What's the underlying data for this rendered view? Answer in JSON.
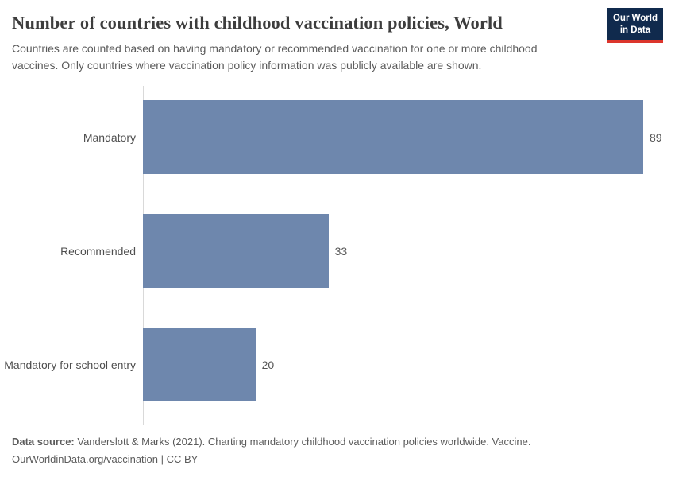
{
  "header": {
    "title": "Number of countries with childhood vaccination policies, World",
    "subtitle": "Countries are counted based on having mandatory or recommended vaccination for one or more childhood vaccines. Only countries where vaccination policy information was publicly available are shown.",
    "logo": {
      "line1": "Our World",
      "line2": "in Data"
    }
  },
  "chart_data": {
    "type": "bar",
    "orientation": "horizontal",
    "title": "Number of countries with childhood vaccination policies, World",
    "categories": [
      "Mandatory",
      "Recommended",
      "Mandatory for school entry"
    ],
    "values": [
      89,
      33,
      20
    ],
    "value_labels": [
      "89",
      "33",
      "20"
    ],
    "xlabel": "",
    "ylabel": "",
    "xlim": [
      0,
      89
    ],
    "grid": false,
    "legend": "none",
    "bar_color": "#6e87ad"
  },
  "footer": {
    "data_source_label": "Data source:",
    "data_source_text": "Vanderslott & Marks (2021). Charting mandatory childhood vaccination policies worldwide. Vaccine.",
    "license_line": "OurWorldinData.org/vaccination | CC BY"
  },
  "colors": {
    "bar": "#6e87ad",
    "logo_bg": "#102a4d",
    "logo_accent": "#dc352c",
    "axis_line": "#d9d9d9",
    "title_text": "#3d3d3d",
    "body_text": "#5b5b5b"
  }
}
